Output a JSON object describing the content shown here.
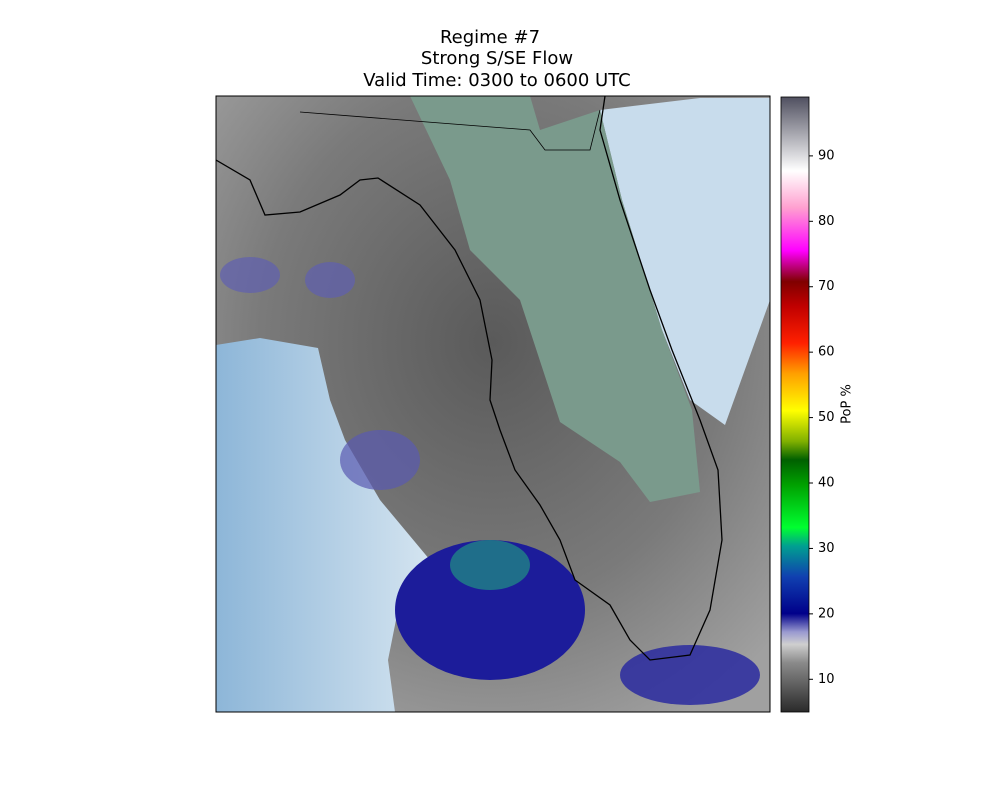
{
  "title": [
    "Regime #7",
    "Strong S/SE Flow",
    "Valid Time: 0300 to 0600 UTC"
  ],
  "colorbar": {
    "label": "PoP %",
    "lim": [
      5,
      99
    ],
    "ticks": [
      10,
      20,
      30,
      40,
      50,
      60,
      70,
      80,
      90
    ]
  }
}
